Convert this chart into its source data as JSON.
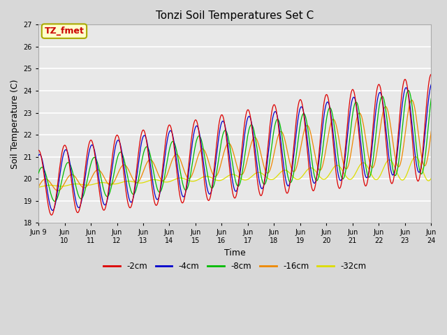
{
  "title": "Tonzi Soil Temperatures Set C",
  "xlabel": "Time",
  "ylabel": "Soil Temperature (C)",
  "ylim": [
    18.0,
    27.0
  ],
  "yticks": [
    18.0,
    19.0,
    20.0,
    21.0,
    22.0,
    23.0,
    24.0,
    25.0,
    26.0,
    27.0
  ],
  "xtick_labels": [
    "Jun 9",
    "Jun\n10",
    "Jun\n11",
    "Jun\n12",
    "Jun\n13",
    "Jun\n14",
    "Jun\n15",
    "Jun\n16",
    "Jun\n17",
    "Jun\n18",
    "Jun\n19",
    "Jun\n20",
    "Jun\n21",
    "Jun\n22",
    "Jun\n23",
    "Jun\n24"
  ],
  "annotation_text": "TZ_fmet",
  "annotation_color": "#cc0000",
  "annotation_box_color": "#ffffcc",
  "colors": {
    "-2cm": "#dd0000",
    "-4cm": "#0000cc",
    "-8cm": "#00bb00",
    "-16cm": "#ee8800",
    "-32cm": "#dddd00"
  },
  "series_labels": [
    "-2cm",
    "-4cm",
    "-8cm",
    "-16cm",
    "-32cm"
  ],
  "bg_color": "#d8d8d8",
  "plot_bg_color": "#e8e8e8"
}
